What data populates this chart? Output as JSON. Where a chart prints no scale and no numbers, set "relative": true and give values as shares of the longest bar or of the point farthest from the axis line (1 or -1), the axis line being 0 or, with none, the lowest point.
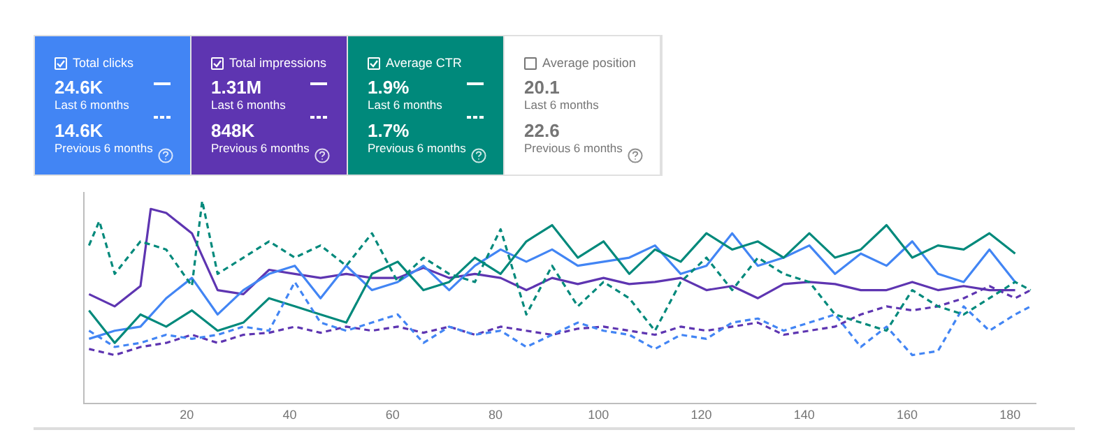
{
  "chart_data": [
    {
      "type": "other",
      "colors": [
        "#4285f4",
        "#5e35b1",
        "#00897b",
        null
      ],
      "annotations": [
        "Total clicks",
        "24.6K",
        "Last 6 months",
        "14.6K",
        "Previous 6 months",
        "Total impressions",
        "1.31M",
        "Last 6 months",
        "848K",
        "Previous 6 months",
        "Average CTR",
        "1.9%",
        "Last 6 months",
        "1.7%",
        "Previous 6 months",
        "Average position",
        "20.1",
        "Last 6 months",
        "22.6",
        "Previous 6 months"
      ]
    },
    {
      "type": "line",
      "relative": true,
      "xlim": [
        0,
        185
      ],
      "xticks": [
        20,
        40,
        60,
        80,
        100,
        120,
        140,
        160,
        180
      ],
      "tick_labels": "x",
      "series": [
        {
          "color": "#00897b",
          "line_style": "dashed",
          "x": [
            1,
            3,
            6,
            11,
            16,
            21,
            23,
            26,
            31,
            36,
            41,
            46,
            51,
            56,
            61,
            66,
            71,
            76,
            81,
            86,
            91,
            96,
            101,
            106,
            111,
            116,
            121,
            126,
            131,
            136,
            141,
            146,
            151,
            156,
            161,
            166,
            171,
            176,
            181,
            184
          ],
          "values": [
            0.78,
            0.9,
            0.64,
            0.8,
            0.76,
            0.58,
            1.0,
            0.64,
            0.72,
            0.8,
            0.72,
            0.78,
            0.68,
            0.84,
            0.6,
            0.72,
            0.64,
            0.6,
            0.86,
            0.44,
            0.68,
            0.48,
            0.6,
            0.52,
            0.36,
            0.6,
            0.72,
            0.56,
            0.72,
            0.64,
            0.6,
            0.44,
            0.4,
            0.36,
            0.56,
            0.48,
            0.44,
            0.52,
            0.6,
            0.56
          ]
        },
        {
          "color": "#4285f4",
          "line_style": "dashed",
          "x": [
            1,
            6,
            11,
            16,
            21,
            26,
            31,
            36,
            41,
            46,
            51,
            56,
            61,
            66,
            71,
            76,
            81,
            86,
            91,
            96,
            101,
            106,
            111,
            116,
            121,
            126,
            131,
            136,
            141,
            146,
            151,
            156,
            161,
            166,
            171,
            176,
            181,
            184
          ],
          "values": [
            0.36,
            0.28,
            0.3,
            0.34,
            0.32,
            0.34,
            0.38,
            0.36,
            0.6,
            0.4,
            0.36,
            0.4,
            0.44,
            0.3,
            0.38,
            0.34,
            0.36,
            0.28,
            0.34,
            0.4,
            0.36,
            0.34,
            0.27,
            0.34,
            0.32,
            0.4,
            0.42,
            0.36,
            0.4,
            0.44,
            0.28,
            0.38,
            0.24,
            0.26,
            0.48,
            0.36,
            0.44,
            0.48
          ]
        },
        {
          "color": "#5e35b1",
          "line_style": "dashed",
          "x": [
            1,
            6,
            11,
            16,
            21,
            26,
            31,
            36,
            41,
            46,
            51,
            56,
            61,
            66,
            71,
            76,
            81,
            86,
            91,
            96,
            101,
            106,
            111,
            116,
            121,
            126,
            131,
            136,
            141,
            146,
            151,
            156,
            161,
            166,
            171,
            176,
            181,
            184
          ],
          "values": [
            0.27,
            0.24,
            0.28,
            0.3,
            0.34,
            0.3,
            0.34,
            0.35,
            0.38,
            0.35,
            0.38,
            0.36,
            0.38,
            0.35,
            0.38,
            0.34,
            0.38,
            0.36,
            0.34,
            0.37,
            0.38,
            0.36,
            0.34,
            0.38,
            0.36,
            0.38,
            0.4,
            0.34,
            0.36,
            0.38,
            0.44,
            0.48,
            0.46,
            0.48,
            0.52,
            0.58,
            0.52,
            0.56
          ]
        },
        {
          "color": "#00897b",
          "line_style": "solid",
          "x": [
            1,
            6,
            11,
            16,
            21,
            26,
            31,
            36,
            41,
            46,
            51,
            56,
            61,
            66,
            71,
            76,
            81,
            86,
            91,
            96,
            101,
            106,
            111,
            116,
            121,
            126,
            131,
            136,
            141,
            146,
            151,
            156,
            161,
            166,
            171,
            176,
            181
          ],
          "values": [
            0.46,
            0.3,
            0.44,
            0.38,
            0.46,
            0.36,
            0.4,
            0.52,
            0.48,
            0.44,
            0.4,
            0.64,
            0.7,
            0.56,
            0.6,
            0.72,
            0.64,
            0.8,
            0.88,
            0.72,
            0.8,
            0.64,
            0.76,
            0.7,
            0.84,
            0.76,
            0.8,
            0.72,
            0.84,
            0.72,
            0.76,
            0.88,
            0.72,
            0.78,
            0.76,
            0.84,
            0.74
          ]
        },
        {
          "color": "#4285f4",
          "line_style": "solid",
          "x": [
            1,
            6,
            11,
            16,
            21,
            26,
            31,
            36,
            41,
            46,
            51,
            56,
            61,
            66,
            71,
            76,
            81,
            86,
            91,
            96,
            101,
            106,
            111,
            116,
            121,
            126,
            131,
            136,
            141,
            146,
            151,
            156,
            161,
            166,
            171,
            176,
            181
          ],
          "values": [
            0.32,
            0.36,
            0.38,
            0.52,
            0.62,
            0.44,
            0.56,
            0.64,
            0.68,
            0.52,
            0.68,
            0.56,
            0.6,
            0.68,
            0.56,
            0.68,
            0.76,
            0.7,
            0.76,
            0.68,
            0.7,
            0.72,
            0.78,
            0.64,
            0.68,
            0.84,
            0.68,
            0.72,
            0.78,
            0.64,
            0.74,
            0.68,
            0.8,
            0.64,
            0.6,
            0.76,
            0.6
          ]
        },
        {
          "color": "#5e35b1",
          "line_style": "solid",
          "x": [
            1,
            6,
            11,
            13,
            16,
            21,
            26,
            31,
            36,
            41,
            46,
            51,
            56,
            61,
            66,
            71,
            76,
            81,
            86,
            91,
            96,
            101,
            106,
            111,
            116,
            121,
            126,
            131,
            136,
            141,
            146,
            151,
            156,
            161,
            166,
            171,
            176,
            181
          ],
          "values": [
            0.54,
            0.48,
            0.58,
            0.96,
            0.94,
            0.84,
            0.56,
            0.54,
            0.66,
            0.64,
            0.62,
            0.64,
            0.62,
            0.62,
            0.67,
            0.62,
            0.64,
            0.62,
            0.56,
            0.62,
            0.59,
            0.62,
            0.59,
            0.6,
            0.62,
            0.56,
            0.58,
            0.52,
            0.59,
            0.6,
            0.59,
            0.56,
            0.56,
            0.6,
            0.56,
            0.58,
            0.56,
            0.56
          ]
        }
      ]
    }
  ]
}
